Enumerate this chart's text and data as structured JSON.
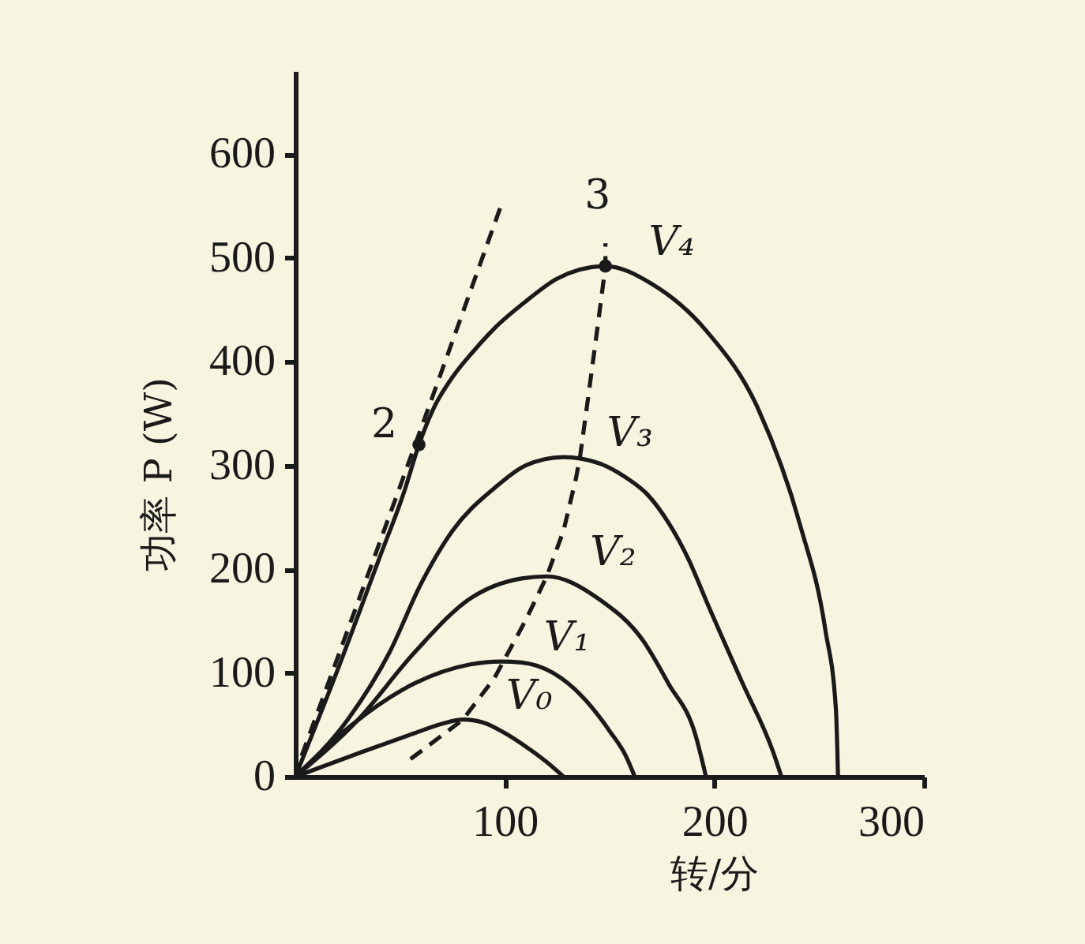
{
  "chart_data": {
    "type": "line",
    "xlabel": "转/分",
    "ylabel": "功率 P (W)",
    "xlim": [
      0,
      300
    ],
    "ylim": [
      0,
      680
    ],
    "xticks": [
      100,
      200,
      300
    ],
    "yticks": [
      0,
      100,
      200,
      300,
      400,
      500,
      600
    ],
    "marker": "none",
    "line_style": "solid",
    "series": [
      {
        "name": "V₀",
        "color": "#1a1a1a",
        "x": [
          0,
          32,
          57,
          70,
          80,
          90,
          100,
          110,
          120,
          128
        ],
        "values": [
          0,
          24,
          42,
          51,
          55,
          52,
          42,
          29,
          14,
          0
        ]
      },
      {
        "name": "V₁",
        "color": "#1a1a1a",
        "x": [
          0,
          27,
          57,
          83,
          98,
          108,
          123,
          138,
          150,
          158,
          162
        ],
        "values": [
          0,
          50,
          90,
          108,
          111,
          110,
          100,
          75,
          44,
          19,
          0
        ]
      },
      {
        "name": "V₂",
        "color": "#1a1a1a",
        "x": [
          0,
          30,
          57,
          83,
          108,
          120,
          145,
          166,
          178,
          191,
          196
        ],
        "values": [
          0,
          55,
          120,
          171,
          191,
          193,
          171,
          131,
          90,
          40,
          0
        ]
      },
      {
        "name": "V₃",
        "color": "#1a1a1a",
        "x": [
          0,
          25,
          45,
          60,
          75,
          95,
          110,
          128,
          145,
          158,
          168,
          178,
          188,
          196,
          213,
          228,
          232
        ],
        "values": [
          0,
          55,
          120,
          186,
          237,
          278,
          300,
          308,
          302,
          288,
          272,
          245,
          208,
          170,
          92,
          24,
          0
        ]
      },
      {
        "name": "V₄",
        "color": "#1a1a1a",
        "x": [
          0,
          20,
          40,
          52,
          59,
          66,
          75,
          85,
          95,
          110,
          125,
          148,
          170,
          196,
          221,
          241,
          253,
          258,
          259
        ],
        "values": [
          0,
          102,
          210,
          275,
          320,
          355,
          385,
          410,
          432,
          458,
          480,
          492,
          475,
          430,
          354,
          242,
          141,
          65,
          0
        ]
      },
      {
        "name": "2",
        "color": "#1a1a1a",
        "line_style": "dashed",
        "x": [
          3,
          59,
          99
        ],
        "values": [
          20,
          330,
          555
        ]
      },
      {
        "name": "3",
        "color": "#1a1a1a",
        "line_style": "dashed",
        "x": [
          55,
          80,
          95,
          110,
          120,
          128,
          134,
          136,
          140,
          145,
          148,
          148
        ],
        "values": [
          17,
          55,
          95,
          151,
          193,
          237,
          288,
          310,
          369,
          445,
          492,
          514
        ]
      },
      {
        "type": "scatter",
        "marker": "circle",
        "color": "#1a1a1a",
        "x": [
          59,
          148
        ],
        "values": [
          320,
          492
        ]
      }
    ]
  }
}
